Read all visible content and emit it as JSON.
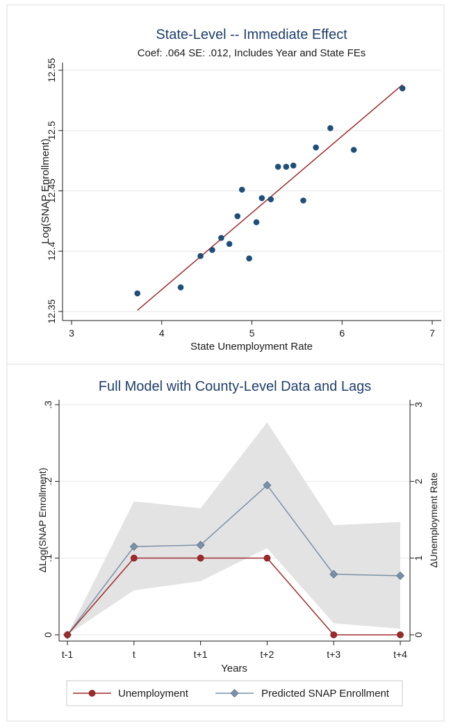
{
  "chart_data": [
    {
      "type": "scatter",
      "title": "State-Level -- Immediate Effect",
      "subtitle": "Coef: .064 SE: .012, Includes Year and State FEs",
      "xlabel": "State Unemployment Rate",
      "ylabel": "Log(SNAP Enrollment)",
      "xlim": [
        3,
        7
      ],
      "ylim": [
        12.35,
        12.55
      ],
      "x_ticks": [
        "3",
        "4",
        "5",
        "6",
        "7"
      ],
      "y_ticks": [
        "12.35",
        "12.4",
        "12.45",
        "12.5",
        "12.55"
      ],
      "grid": true,
      "points": [
        {
          "x": 3.73,
          "y": 12.365
        },
        {
          "x": 4.21,
          "y": 12.37
        },
        {
          "x": 4.43,
          "y": 12.396
        },
        {
          "x": 4.56,
          "y": 12.401
        },
        {
          "x": 4.66,
          "y": 12.411
        },
        {
          "x": 4.75,
          "y": 12.406
        },
        {
          "x": 4.84,
          "y": 12.429
        },
        {
          "x": 4.89,
          "y": 12.451
        },
        {
          "x": 4.97,
          "y": 12.394
        },
        {
          "x": 5.05,
          "y": 12.424
        },
        {
          "x": 5.11,
          "y": 12.444
        },
        {
          "x": 5.21,
          "y": 12.443
        },
        {
          "x": 5.29,
          "y": 12.47
        },
        {
          "x": 5.38,
          "y": 12.47
        },
        {
          "x": 5.46,
          "y": 12.471
        },
        {
          "x": 5.57,
          "y": 12.442
        },
        {
          "x": 5.71,
          "y": 12.486
        },
        {
          "x": 5.87,
          "y": 12.502
        },
        {
          "x": 6.13,
          "y": 12.484
        },
        {
          "x": 6.67,
          "y": 12.535
        }
      ],
      "fit_line": {
        "x": [
          3.73,
          6.67
        ],
        "y": [
          12.351,
          12.538
        ]
      },
      "colors": {
        "points": "#1f4e79",
        "fit": "#9e2a2b",
        "grid": "#e6e6e6"
      }
    },
    {
      "type": "line",
      "title": "Full Model with County-Level Data and Lags",
      "xlabel": "Years",
      "ylabel_left": "ΔLog(SNAP Enrollment)",
      "ylabel_right": "ΔUnemployment Rate",
      "categories": [
        "t-1",
        "t",
        "t+1",
        "t+2",
        "t+3",
        "t+4"
      ],
      "ylim_left": [
        0,
        0.3
      ],
      "ylim_right": [
        0,
        3
      ],
      "y_ticks_left": [
        "0",
        ".1",
        ".2",
        ".3"
      ],
      "y_ticks_right": [
        "0",
        "1",
        "2",
        "3"
      ],
      "grid": true,
      "series": [
        {
          "name": "Unemployment",
          "axis": "left",
          "values": [
            0,
            0.1,
            0.1,
            0.1,
            0,
            0
          ],
          "color": "#9e2a2b",
          "marker": "circle"
        },
        {
          "name": "Predicted SNAP Enrollment",
          "axis": "left",
          "values": [
            0,
            0.115,
            0.117,
            0.195,
            0.079,
            0.077
          ],
          "color": "#7a90a8",
          "marker": "diamond"
        }
      ],
      "confidence_band": {
        "lower": [
          0,
          0.058,
          0.07,
          0.113,
          0.015,
          0.008
        ],
        "upper": [
          0,
          0.174,
          0.165,
          0.277,
          0.143,
          0.147
        ],
        "color": "#e3e3e3"
      },
      "legend_position": "bottom"
    }
  ]
}
